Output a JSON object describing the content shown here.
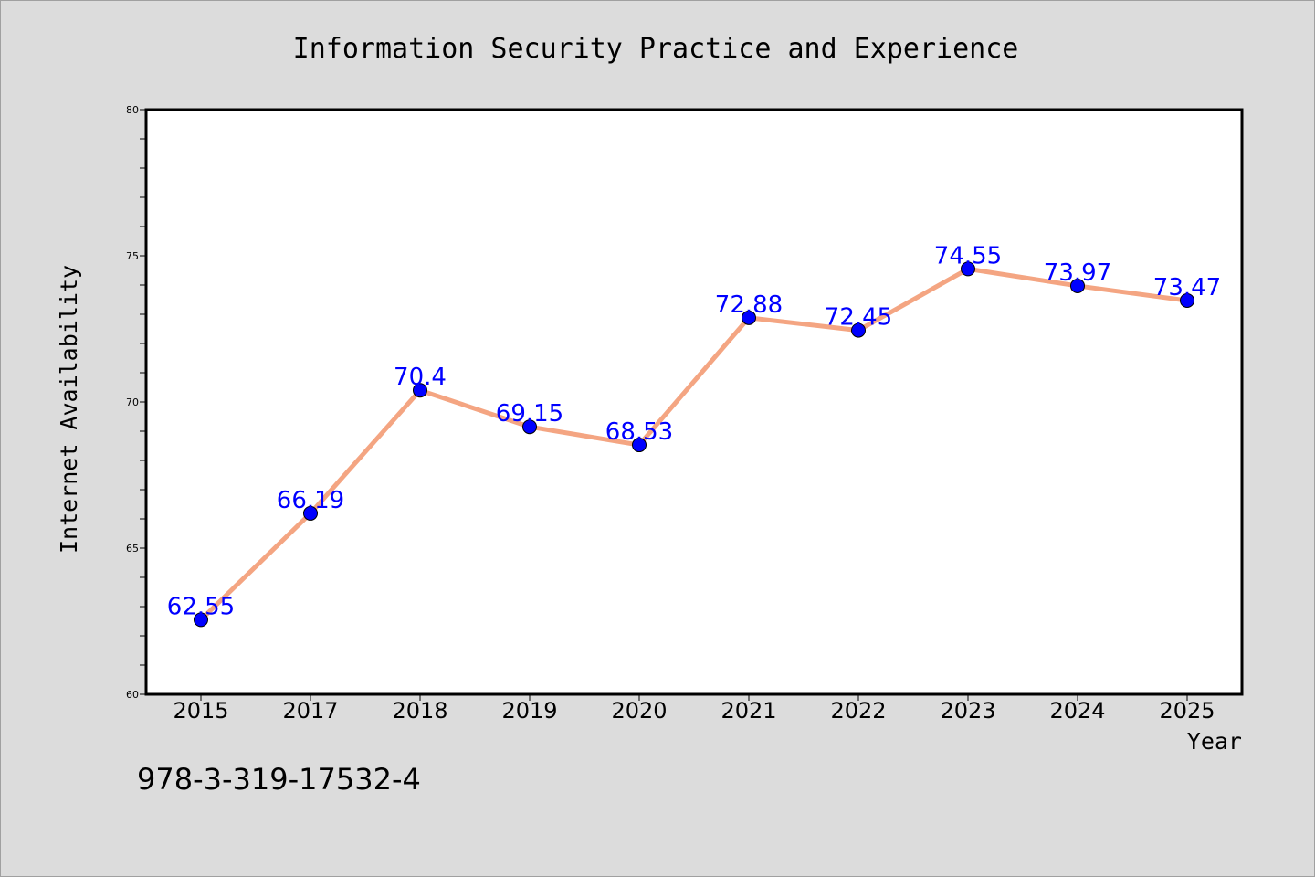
{
  "chart_data": {
    "type": "line",
    "title": "Information Security Practice and Experience",
    "xlabel": "Year",
    "ylabel": "Internet Availability",
    "categories": [
      "2015",
      "2017",
      "2018",
      "2019",
      "2020",
      "2021",
      "2022",
      "2023",
      "2024",
      "2025"
    ],
    "series": [
      {
        "values": [
          62.55,
          66.19,
          70.4,
          69.15,
          68.53,
          72.88,
          72.45,
          74.55,
          73.97,
          73.47
        ],
        "labels": [
          "62.55",
          "66.19",
          "70.4",
          "69.15",
          "68.53",
          "72.88",
          "72.45",
          "74.55",
          "73.97",
          "73.47"
        ]
      }
    ],
    "ylim": [
      60,
      80
    ],
    "yticks": [
      "60",
      "65",
      "70",
      "75",
      "80"
    ],
    "grid": false,
    "line_color": "#f4a582",
    "marker_color": "#0000ff",
    "label_color": "#0000ff",
    "background": "#dcdcdc",
    "plot_background": "#ffffff"
  },
  "annotation": {
    "isbn": "978-3-319-17532-4"
  }
}
